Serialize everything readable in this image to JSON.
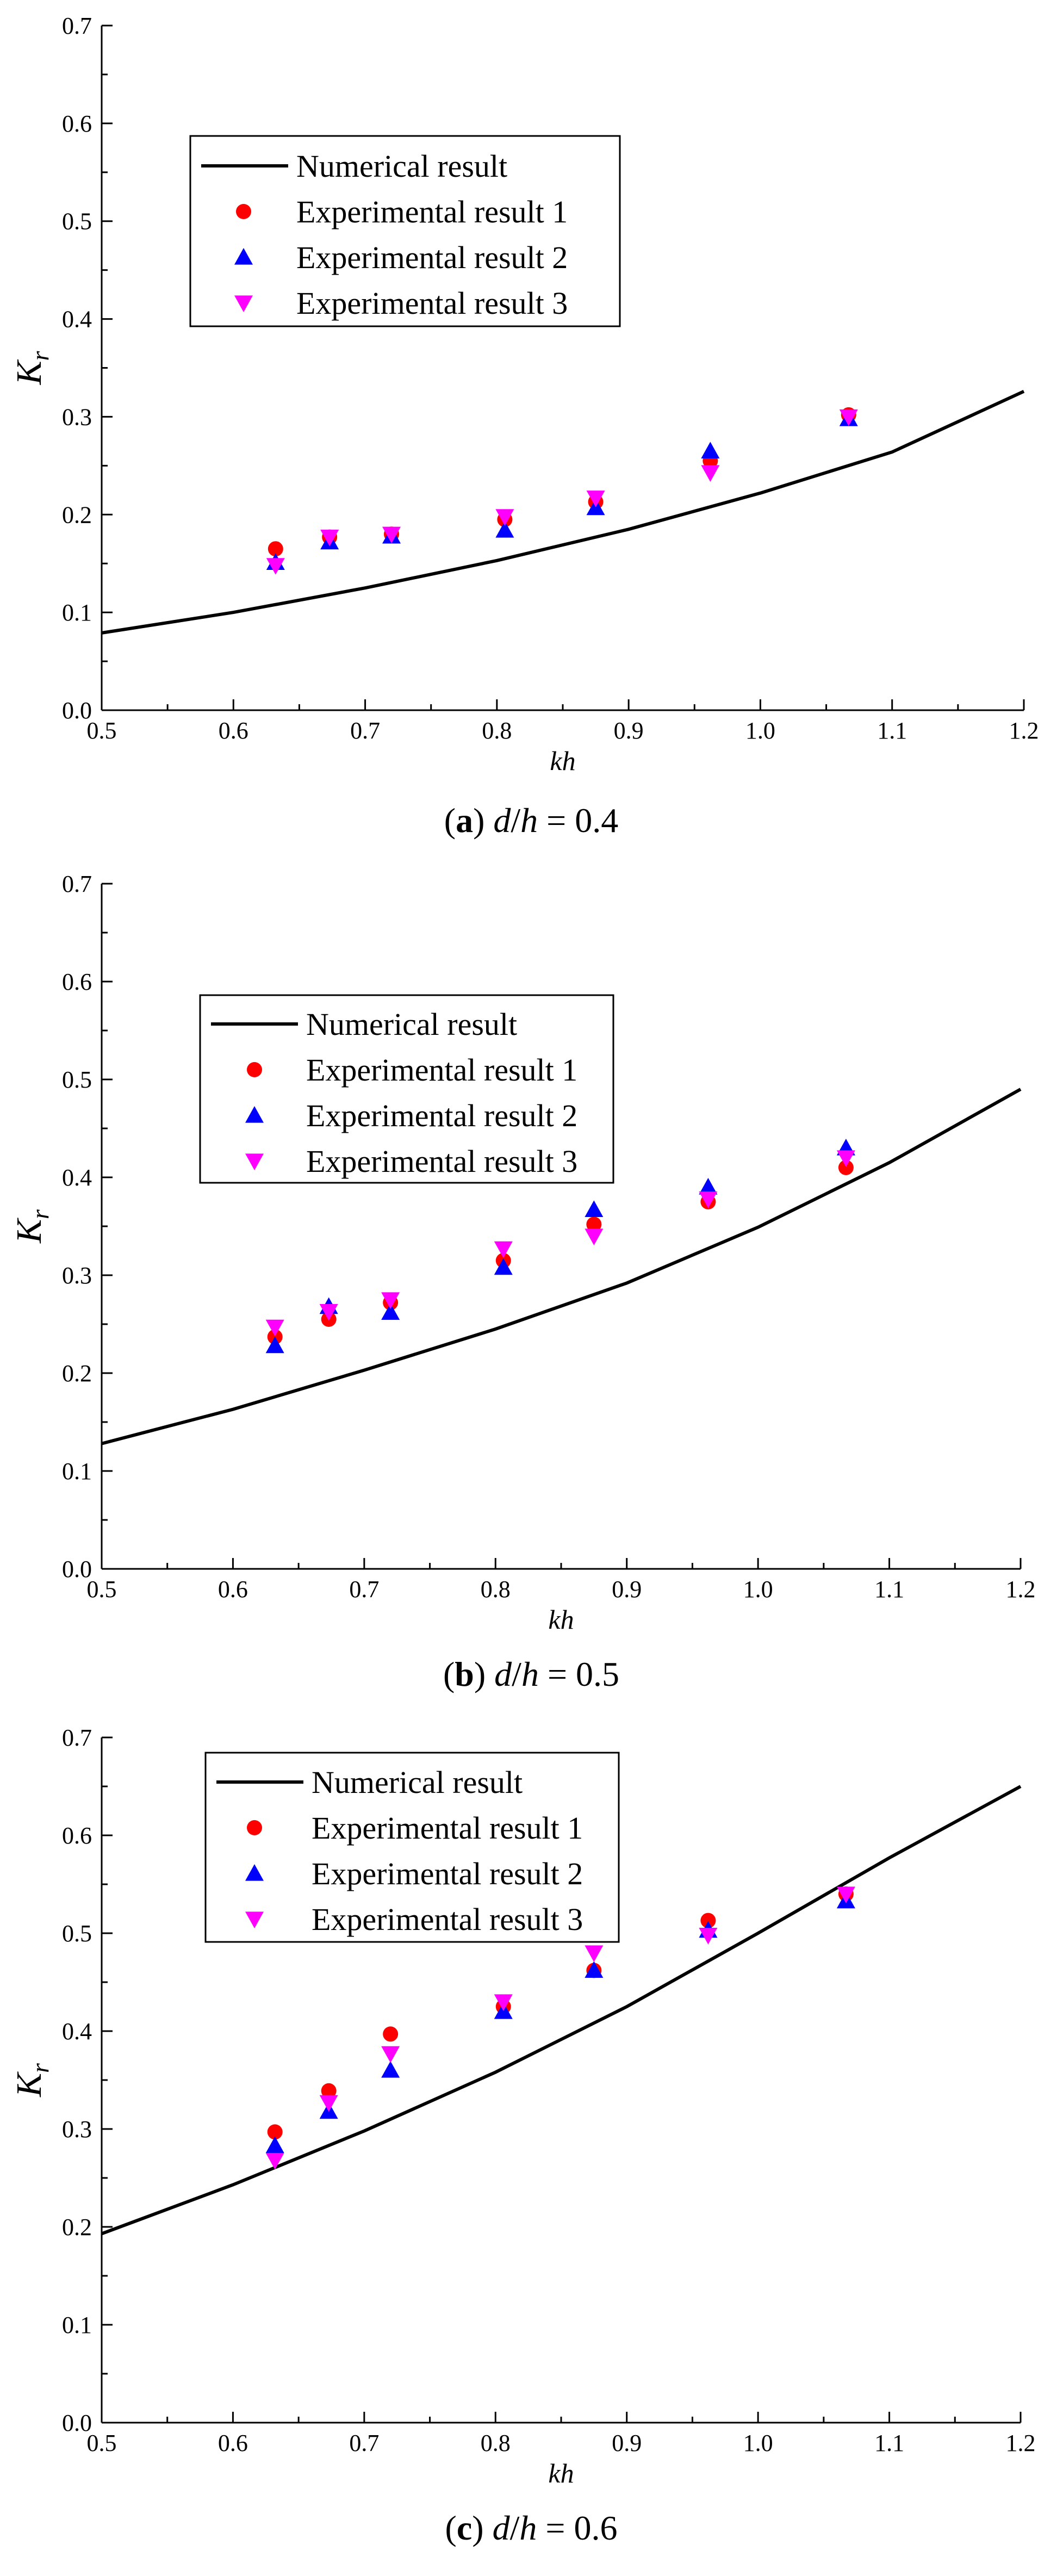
{
  "chart_data": [
    {
      "type": "line",
      "panel": "a",
      "caption_label": "a",
      "caption_var": "d",
      "caption_den": "h",
      "caption_eq": "= 0.4",
      "xlabel": "kh",
      "ylabel_main": "K",
      "ylabel_sub": "r",
      "xlim": [
        0.5,
        1.2
      ],
      "ylim": [
        0.0,
        0.7
      ],
      "xticks": [
        "0.5",
        "0.6",
        "0.7",
        "0.8",
        "0.9",
        "1.0",
        "1.1",
        "1.2"
      ],
      "yticks": [
        "0.0",
        "0.1",
        "0.2",
        "0.3",
        "0.4",
        "0.5",
        "0.6",
        "0.7"
      ],
      "legend": [
        "Numerical result",
        "Experimental result 1",
        "Experimental result 2",
        "Experimental result 3"
      ],
      "legend_placement": "upper-left",
      "numerical": {
        "x": [
          0.5,
          0.6,
          0.7,
          0.8,
          0.9,
          1.0,
          1.1,
          1.2
        ],
        "y": [
          0.079,
          0.1,
          0.125,
          0.153,
          0.185,
          0.222,
          0.264,
          0.326
        ]
      },
      "series": [
        {
          "name": "Experimental result 1",
          "x": [
            0.632,
            0.673,
            0.72,
            0.806,
            0.875,
            0.962,
            1.067
          ],
          "y": [
            0.165,
            0.177,
            0.18,
            0.195,
            0.213,
            0.255,
            0.302
          ]
        },
        {
          "name": "Experimental result 2",
          "x": [
            0.632,
            0.673,
            0.72,
            0.806,
            0.875,
            0.962,
            1.067
          ],
          "y": [
            0.151,
            0.172,
            0.178,
            0.184,
            0.207,
            0.265,
            0.298
          ]
        },
        {
          "name": "Experimental result 3",
          "x": [
            0.632,
            0.673,
            0.72,
            0.806,
            0.875,
            0.962,
            1.067
          ],
          "y": [
            0.148,
            0.177,
            0.18,
            0.198,
            0.217,
            0.243,
            0.3
          ]
        }
      ]
    },
    {
      "type": "line",
      "panel": "b",
      "caption_label": "b",
      "caption_var": "d",
      "caption_den": "h",
      "caption_eq": "= 0.5",
      "xlabel": "kh",
      "ylabel_main": "K",
      "ylabel_sub": "r",
      "xlim": [
        0.5,
        1.2
      ],
      "ylim": [
        0.0,
        0.7
      ],
      "xticks": [
        "0.5",
        "0.6",
        "0.7",
        "0.8",
        "0.9",
        "1.0",
        "1.1",
        "1.2"
      ],
      "yticks": [
        "0.0",
        "0.1",
        "0.2",
        "0.3",
        "0.4",
        "0.5",
        "0.6",
        "0.7"
      ],
      "legend": [
        "Numerical result",
        "Experimental result 1",
        "Experimental result 2",
        "Experimental result 3"
      ],
      "legend_placement": "upper-left",
      "numerical": {
        "x": [
          0.5,
          0.6,
          0.7,
          0.8,
          0.9,
          1.0,
          1.1,
          1.2
        ],
        "y": [
          0.128,
          0.163,
          0.203,
          0.245,
          0.292,
          0.349,
          0.415,
          0.49
        ]
      },
      "series": [
        {
          "name": "Experimental result 1",
          "x": [
            0.632,
            0.673,
            0.72,
            0.806,
            0.875,
            0.962,
            1.067
          ],
          "y": [
            0.237,
            0.255,
            0.272,
            0.315,
            0.352,
            0.375,
            0.41
          ]
        },
        {
          "name": "Experimental result 2",
          "x": [
            0.632,
            0.673,
            0.72,
            0.806,
            0.875,
            0.962,
            1.067
          ],
          "y": [
            0.228,
            0.268,
            0.262,
            0.308,
            0.367,
            0.39,
            0.43
          ]
        },
        {
          "name": "Experimental result 3",
          "x": [
            0.632,
            0.673,
            0.72,
            0.806,
            0.875,
            0.962,
            1.067
          ],
          "y": [
            0.247,
            0.263,
            0.275,
            0.327,
            0.34,
            0.378,
            0.42
          ]
        }
      ]
    },
    {
      "type": "line",
      "panel": "c",
      "caption_label": "c",
      "caption_var": "d",
      "caption_den": "h",
      "caption_eq": "= 0.6",
      "xlabel": "kh",
      "ylabel_main": "K",
      "ylabel_sub": "r",
      "xlim": [
        0.5,
        1.2
      ],
      "ylim": [
        0.0,
        0.7
      ],
      "xticks": [
        "0.5",
        "0.6",
        "0.7",
        "0.8",
        "0.9",
        "1.0",
        "1.1",
        "1.2"
      ],
      "yticks": [
        "0.0",
        "0.1",
        "0.2",
        "0.3",
        "0.4",
        "0.5",
        "0.6",
        "0.7"
      ],
      "legend": [
        "Numerical result",
        "Experimental result 1",
        "Experimental result 2",
        "Experimental result 3"
      ],
      "legend_placement": "top-left",
      "numerical": {
        "x": [
          0.5,
          0.6,
          0.7,
          0.8,
          0.9,
          1.0,
          1.1,
          1.2
        ],
        "y": [
          0.193,
          0.243,
          0.298,
          0.358,
          0.425,
          0.5,
          0.577,
          0.65
        ]
      },
      "series": [
        {
          "name": "Experimental result 1",
          "x": [
            0.632,
            0.673,
            0.72,
            0.806,
            0.875,
            0.962,
            1.067
          ],
          "y": [
            0.297,
            0.339,
            0.397,
            0.425,
            0.462,
            0.513,
            0.54
          ]
        },
        {
          "name": "Experimental result 2",
          "x": [
            0.632,
            0.673,
            0.72,
            0.806,
            0.875,
            0.962,
            1.067
          ],
          "y": [
            0.283,
            0.318,
            0.36,
            0.42,
            0.462,
            0.503,
            0.533
          ]
        },
        {
          "name": "Experimental result 3",
          "x": [
            0.632,
            0.673,
            0.72,
            0.806,
            0.875,
            0.962,
            1.067
          ],
          "y": [
            0.268,
            0.327,
            0.377,
            0.43,
            0.48,
            0.498,
            0.54
          ]
        }
      ]
    }
  ],
  "colors": {
    "numerical": "#000000",
    "experimental_1": "#ff0000",
    "experimental_2": "#0000ff",
    "experimental_3": "#ff00ff"
  }
}
